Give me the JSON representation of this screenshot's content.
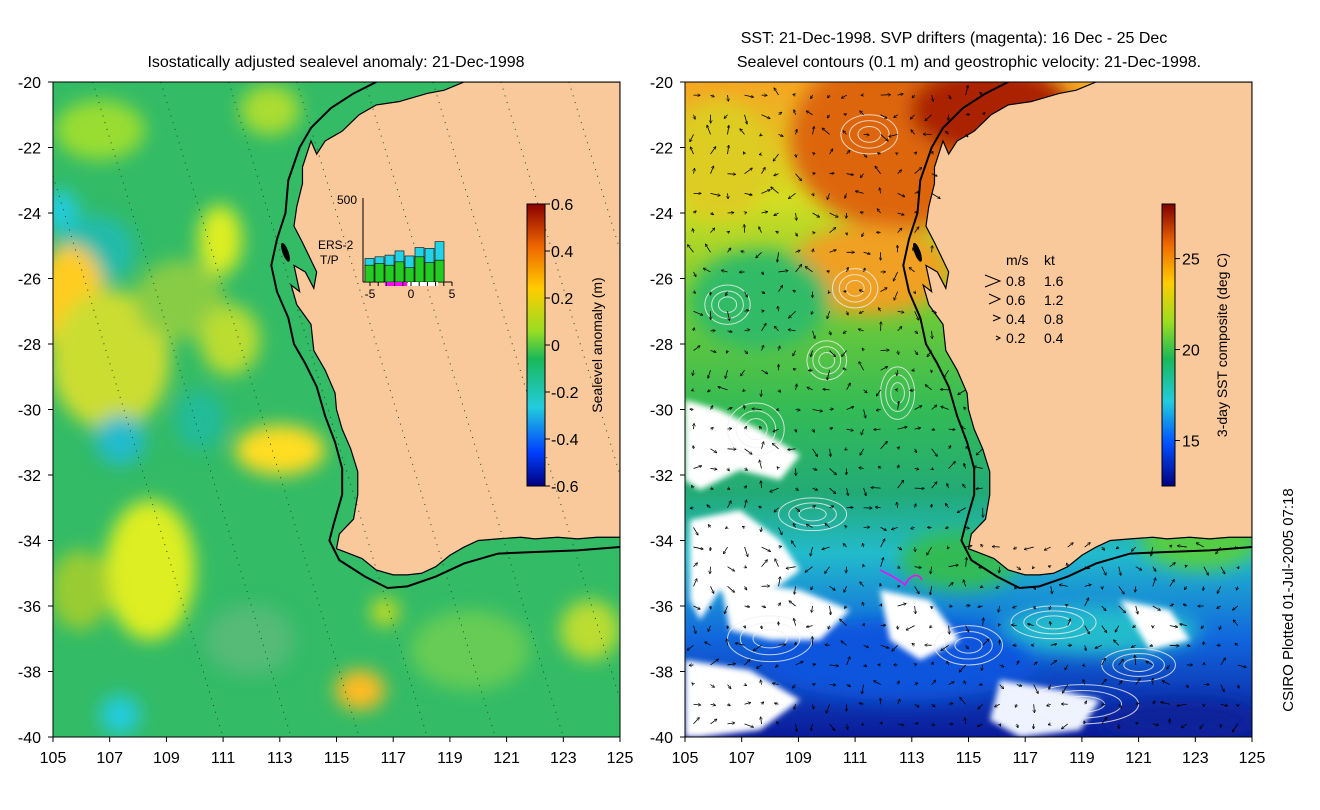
{
  "left_panel": {
    "title": "Isostatically adjusted sealevel anomaly: 21-Dec-1998",
    "colorbar": {
      "label": "Sealevel anomaly (m)",
      "ticks": [
        "0.6",
        "0.4",
        "0.2",
        "0",
        "-0.2",
        "-0.4",
        "-0.6"
      ],
      "range": [
        -0.6,
        0.6
      ]
    },
    "inset": {
      "y_max_label": "500",
      "x_tick_labels": [
        "-5",
        "0",
        "5"
      ],
      "legend": [
        "ERS-2",
        "T/P"
      ],
      "ers2_counts": [
        140,
        150,
        160,
        185,
        155,
        205,
        200,
        240
      ],
      "tp_counts": [
        100,
        110,
        100,
        120,
        85,
        150,
        115,
        130
      ]
    }
  },
  "right_panel": {
    "title_line1": "SST: 21-Dec-1998. SVP drifters (magenta): 16 Dec - 25 Dec",
    "title_line2": "Sealevel contours (0.1 m) and geostrophic velocity: 21-Dec-1998.",
    "colorbar": {
      "label": "3-day SST composite (deg C)",
      "ticks": [
        "25",
        "20",
        "15"
      ],
      "range": [
        12.5,
        28
      ]
    },
    "velocity_legend": {
      "header_ms": "m/s",
      "header_kt": "kt",
      "rows": [
        {
          "ms": "0.8",
          "kt": "1.6"
        },
        {
          "ms": "0.6",
          "kt": "1.2"
        },
        {
          "ms": "0.4",
          "kt": "0.8"
        },
        {
          "ms": "0.2",
          "kt": "0.4"
        }
      ]
    }
  },
  "axes": {
    "y_labels": [
      "-20",
      "-22",
      "-24",
      "-26",
      "-28",
      "-30",
      "-32",
      "-34",
      "-36",
      "-38",
      "-40"
    ],
    "x_labels": [
      "105",
      "107",
      "109",
      "111",
      "113",
      "115",
      "117",
      "119",
      "121",
      "123",
      "125"
    ]
  },
  "credit": "CSIRO Plotted 01-Jul-2005 07:18",
  "colors": {
    "land": "#f9c89b",
    "coast": "#000000",
    "ers2": "#22d3e8",
    "tp": "#22cc22",
    "drifter": "#ff00ff"
  }
}
